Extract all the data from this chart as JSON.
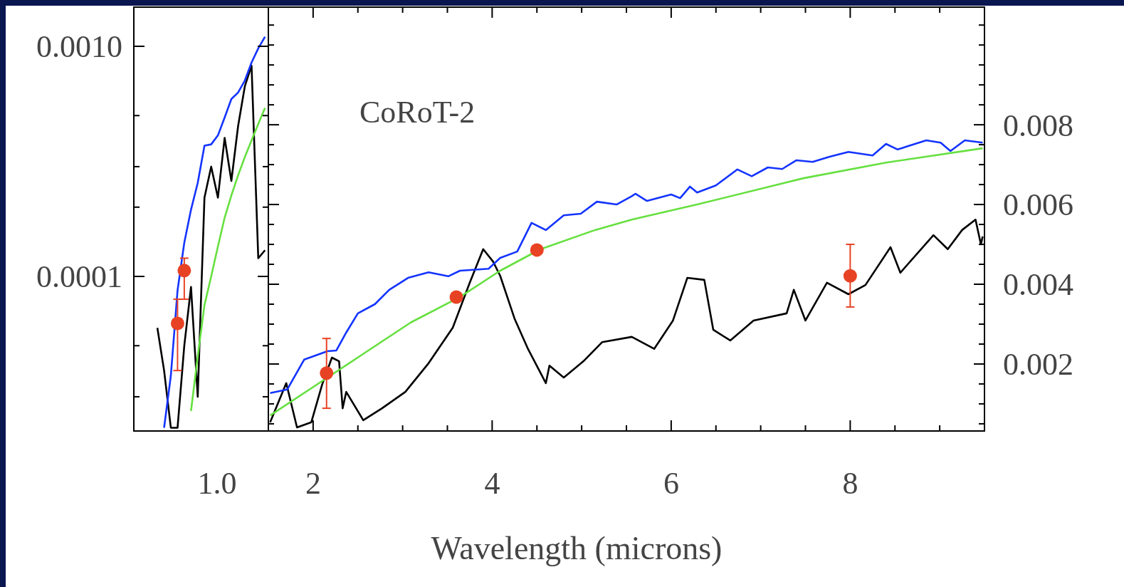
{
  "chart_data": [
    {
      "type": "line",
      "log": "y",
      "annotations": [
        "1.0"
      ],
      "ylim": [
        2.13e-05,
        0.00148
      ],
      "categories": [
        null,
        null,
        null,
        null,
        null,
        null,
        null,
        null,
        null,
        null,
        null,
        null,
        null,
        null,
        null,
        null,
        null,
        null,
        null,
        null
      ],
      "yticks": [
        {
          "value": 3e-05,
          "label": null
        },
        {
          "value": 5e-05,
          "label": null
        },
        {
          "value": 0.0001,
          "label": "0.0001"
        },
        {
          "value": 0.0002,
          "label": null
        },
        {
          "value": 0.0003,
          "label": null
        },
        {
          "value": 0.0005,
          "label": null
        },
        {
          "value": 0.001,
          "label": "0.0010"
        }
      ],
      "series": [
        {
          "color": "#000000",
          "values": [
            null,
            null,
            null,
            5.98e-05,
            3.9e-05,
            2.2e-05,
            2.2e-05,
            5e-05,
            9e-05,
            3e-05,
            0.00022,
            0.0003,
            0.00022,
            0.0004,
            0.00026,
            0.00045,
            0.00067,
            0.000824,
            0.00012,
            0.00013
          ]
        },
        {
          "color": "#1434ff",
          "values": [
            null,
            null,
            null,
            null,
            2.2e-05,
            3.7e-05,
            8.7e-05,
            0.00014,
            0.000195,
            0.000255,
            0.00037,
            0.000375,
            0.00041,
            0.00049,
            0.00059,
            0.00063,
            0.00071,
            0.00085,
            0.00098,
            0.0011
          ]
        },
        {
          "color": "#66e040",
          "values": [
            null,
            null,
            null,
            null,
            null,
            null,
            null,
            null,
            2.6e-05,
            4.5e-05,
            7.5e-05,
            0.0001,
            0.000135,
            0.00018,
            0.000225,
            0.000275,
            0.00033,
            0.00039,
            0.00046,
            0.00054
          ]
        },
        {
          "type": "scatter",
          "color": "#e84224",
          "marker": "circle",
          "values": [
            null,
            null,
            null,
            null,
            null,
            null,
            6.25e-05,
            0.000106,
            null,
            null,
            null,
            null,
            null,
            null,
            null,
            null,
            null,
            null,
            null,
            null
          ],
          "errors": [
            null,
            null,
            null,
            null,
            null,
            null,
            [
              3.9e-05,
              7.96e-05
            ],
            [
              7.96e-05,
              0.00012
            ],
            null,
            null,
            null,
            null,
            null,
            null,
            null,
            null,
            null,
            null,
            null,
            null
          ]
        }
      ]
    },
    {
      "type": "line",
      "xlabel": "Wavelength (microns)",
      "annotations": [
        "CoRoT-2"
      ],
      "xlim": [
        1.5,
        9.5
      ],
      "y2lim": [
        0.00032,
        0.01095
      ],
      "xticks": [
        2,
        {
          "value": 2.5,
          "label": null
        },
        {
          "value": 3,
          "label": null
        },
        {
          "value": 3.5,
          "label": null
        },
        4,
        {
          "value": 4.5,
          "label": null
        },
        {
          "value": 5,
          "label": null
        },
        {
          "value": 5.5,
          "label": null
        },
        6,
        {
          "value": 6.5,
          "label": null
        },
        {
          "value": 7,
          "label": null
        },
        {
          "value": 7.5,
          "label": null
        },
        8,
        {
          "value": 8.5,
          "label": null
        },
        {
          "value": 9,
          "label": null
        }
      ],
      "y2ticks": [
        {
          "value": 0.0005,
          "label": null
        },
        {
          "value": 0.001,
          "label": null
        },
        {
          "value": 0.0015,
          "label": null
        },
        0.002,
        {
          "value": 0.0025,
          "label": null
        },
        {
          "value": 0.003,
          "label": null
        },
        {
          "value": 0.0035,
          "label": null
        },
        0.004,
        {
          "value": 0.0045,
          "label": null
        },
        {
          "value": 0.005,
          "label": null
        },
        {
          "value": 0.0055,
          "label": null
        },
        0.006,
        {
          "value": 0.0065,
          "label": null
        },
        {
          "value": 0.007,
          "label": null
        },
        {
          "value": 0.0075,
          "label": null
        },
        0.008,
        {
          "value": 0.0085,
          "label": null
        },
        {
          "value": 0.009,
          "label": null
        },
        {
          "value": 0.0095,
          "label": null
        },
        {
          "value": 0.01,
          "label": null
        },
        {
          "value": 0.0105,
          "label": null
        }
      ],
      "series": [
        {
          "axis": "y2",
          "color": "#000000",
          "x": [
            1.52,
            1.7,
            1.82,
            1.98,
            2.1,
            2.21,
            2.29,
            2.33,
            2.37,
            2.56,
            2.77,
            3.03,
            3.29,
            3.56,
            3.75,
            3.9,
            4.01,
            4.09,
            4.25,
            4.4,
            4.6,
            4.64,
            4.8,
            5.02,
            5.23,
            5.56,
            5.81,
            6.02,
            6.18,
            6.37,
            6.47,
            6.66,
            6.92,
            7.29,
            7.37,
            7.5,
            7.74,
            7.98,
            8.17,
            8.45,
            8.56,
            8.93,
            9.09,
            9.25,
            9.4,
            9.46,
            9.48
          ],
          "values": [
            0.00054,
            0.00152,
            0.00041,
            0.00054,
            0.00148,
            0.00216,
            0.00207,
            0.00089,
            0.0013,
            0.00059,
            0.00089,
            0.0013,
            0.00202,
            0.00291,
            0.00404,
            0.00488,
            0.00457,
            0.00421,
            0.00314,
            0.00238,
            0.00152,
            0.00196,
            0.00166,
            0.00207,
            0.00255,
            0.00268,
            0.00238,
            0.00309,
            0.00416,
            0.00411,
            0.00286,
            0.00259,
            0.00309,
            0.00327,
            0.00386,
            0.00309,
            0.00404,
            0.00375,
            0.00398,
            0.00493,
            0.00429,
            0.00523,
            0.00488,
            0.00536,
            0.00562,
            0.005,
            0.0052
          ]
        },
        {
          "axis": "y2",
          "color": "#1434ff",
          "x": [
            1.52,
            1.71,
            1.9,
            2.16,
            2.26,
            2.37,
            2.5,
            2.69,
            2.85,
            3.06,
            3.29,
            3.51,
            3.64,
            3.96,
            4.09,
            4.28,
            4.44,
            4.6,
            4.8,
            4.99,
            5.17,
            5.39,
            5.56,
            5.6,
            5.73,
            6.0,
            6.1,
            6.21,
            6.29,
            6.5,
            6.74,
            6.9,
            7.08,
            7.24,
            7.4,
            7.58,
            7.77,
            7.98,
            8.25,
            8.4,
            8.53,
            8.85,
            9.01,
            9.12,
            9.28,
            9.48
          ],
          "values": [
            0.00127,
            0.00136,
            0.00211,
            0.00232,
            0.00234,
            0.00279,
            0.00327,
            0.0035,
            0.00386,
            0.00416,
            0.0043,
            0.0042,
            0.00434,
            0.00439,
            0.00466,
            0.00482,
            0.00554,
            0.00536,
            0.00573,
            0.00577,
            0.00607,
            0.006,
            0.00621,
            0.00627,
            0.00609,
            0.00625,
            0.00616,
            0.00645,
            0.0063,
            0.00648,
            0.00688,
            0.00671,
            0.00693,
            0.00689,
            0.00711,
            0.00707,
            0.0072,
            0.00732,
            0.00723,
            0.00752,
            0.00738,
            0.00761,
            0.00755,
            0.00734,
            0.00761,
            0.00755
          ]
        },
        {
          "axis": "y2",
          "color": "#66e040",
          "x": [
            1.52,
            2.16,
            3.09,
            3.64,
            4.09,
            4.54,
            5.15,
            5.56,
            6.29,
            7.48,
            8.4,
            9.48
          ],
          "values": [
            0.00071,
            0.00166,
            0.00304,
            0.00368,
            0.00434,
            0.00488,
            0.00536,
            0.00562,
            0.006,
            0.00666,
            0.00705,
            0.00741
          ]
        },
        {
          "type": "scatter",
          "axis": "y2",
          "color": "#e84224",
          "marker": "circle",
          "x": [
            2.15,
            3.6,
            4.5,
            8.0
          ],
          "values": [
            0.00177,
            0.00368,
            0.00486,
            0.00421
          ],
          "errors": [
            [
              0.00089,
              0.00264
            ],
            null,
            null,
            [
              0.00343,
              0.005
            ]
          ]
        }
      ]
    }
  ]
}
